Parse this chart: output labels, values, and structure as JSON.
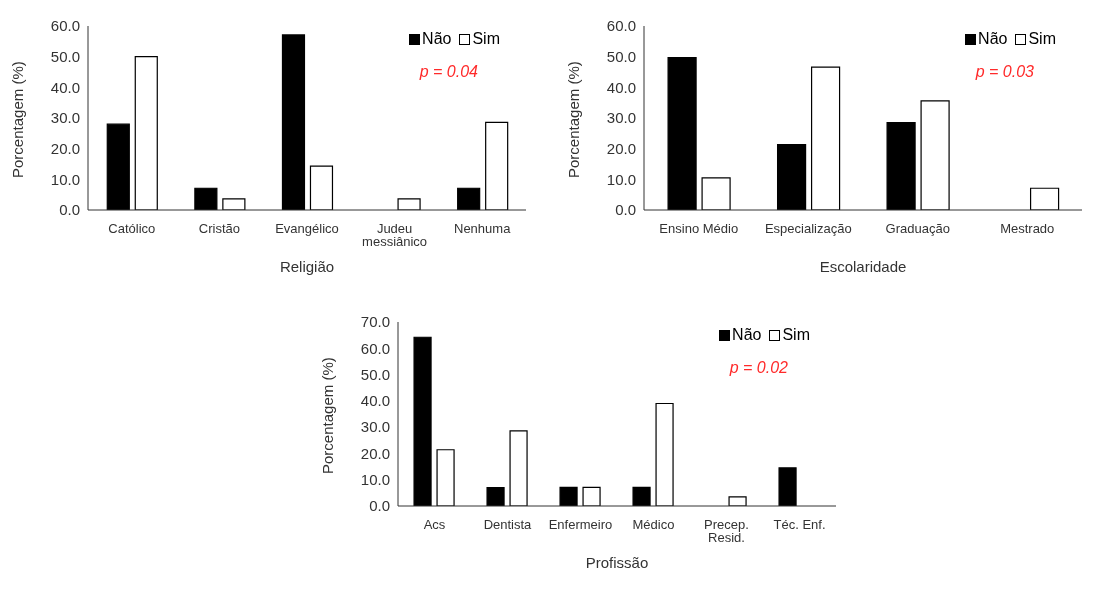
{
  "chart_data": [
    {
      "type": "bar",
      "xlabel": "Religião",
      "ylabel": "Porcentagem  (%)",
      "categories": [
        "Católico",
        "Cristão",
        "Evangélico",
        "Judeu messiânico",
        "Nenhuma"
      ],
      "series": [
        {
          "name": "Não",
          "color": "#000000",
          "values": [
            28.0,
            7.1,
            57.1,
            0,
            7.1
          ]
        },
        {
          "name": "Sim",
          "color": "#ffffff",
          "values": [
            50.0,
            3.6,
            14.3,
            3.6,
            28.6
          ]
        }
      ],
      "ylim": [
        0,
        60
      ],
      "yticks": [
        {
          "value": 0,
          "label": "0.0"
        },
        {
          "value": 10,
          "label": "10.0"
        },
        {
          "value": 20,
          "label": "20.0"
        },
        {
          "value": 30,
          "label": "30.0"
        },
        {
          "value": 40,
          "label": "40.0"
        },
        {
          "value": 50,
          "label": "50.0"
        },
        {
          "value": 60,
          "label": "60.0"
        }
      ],
      "legend": "top right",
      "annotations": [
        "p = 0.04"
      ]
    },
    {
      "type": "bar",
      "xlabel": "Escolaridade",
      "ylabel": "Porcentagem  (%)",
      "categories": [
        "Ensino Médio",
        "Especialização",
        "Graduação",
        "Mestrado"
      ],
      "series": [
        {
          "name": "Não",
          "color": "#000000",
          "values": [
            49.7,
            21.3,
            28.5,
            0
          ]
        },
        {
          "name": "Sim",
          "color": "#ffffff",
          "values": [
            10.5,
            46.6,
            35.6,
            7.1
          ]
        }
      ],
      "ylim": [
        0,
        60
      ],
      "yticks": [
        {
          "value": 0,
          "label": "0.0"
        },
        {
          "value": 10,
          "label": "10.0"
        },
        {
          "value": 20,
          "label": "20.0"
        },
        {
          "value": 30,
          "label": "30.0"
        },
        {
          "value": 40,
          "label": "40.0"
        },
        {
          "value": 50,
          "label": "50.0"
        },
        {
          "value": 60,
          "label": "60.0"
        }
      ],
      "legend": "top right",
      "annotations": [
        "p = 0.03"
      ]
    },
    {
      "type": "bar",
      "xlabel": "Profissão",
      "ylabel": "Porcentagem  (%)",
      "categories": [
        "Acs",
        "Dentista",
        "Enfermeiro",
        "Médico",
        "Precep. Resid.",
        "Téc. Enf."
      ],
      "series": [
        {
          "name": "Não",
          "color": "#000000",
          "values": [
            64.2,
            7.0,
            7.1,
            7.1,
            0,
            14.5
          ]
        },
        {
          "name": "Sim",
          "color": "#ffffff",
          "values": [
            21.4,
            28.6,
            7.1,
            39.0,
            3.5,
            0
          ]
        }
      ],
      "ylim": [
        0,
        70
      ],
      "yticks": [
        {
          "value": 0,
          "label": "0.0"
        },
        {
          "value": 10,
          "label": "10.0"
        },
        {
          "value": 20,
          "label": "20.0"
        },
        {
          "value": 30,
          "label": "30.0"
        },
        {
          "value": 40,
          "label": "40.0"
        },
        {
          "value": 50,
          "label": "50.0"
        },
        {
          "value": 60,
          "label": "60.0"
        },
        {
          "value": 70,
          "label": "70.0"
        }
      ],
      "legend": "top right",
      "annotations": [
        "p = 0.02"
      ]
    }
  ]
}
